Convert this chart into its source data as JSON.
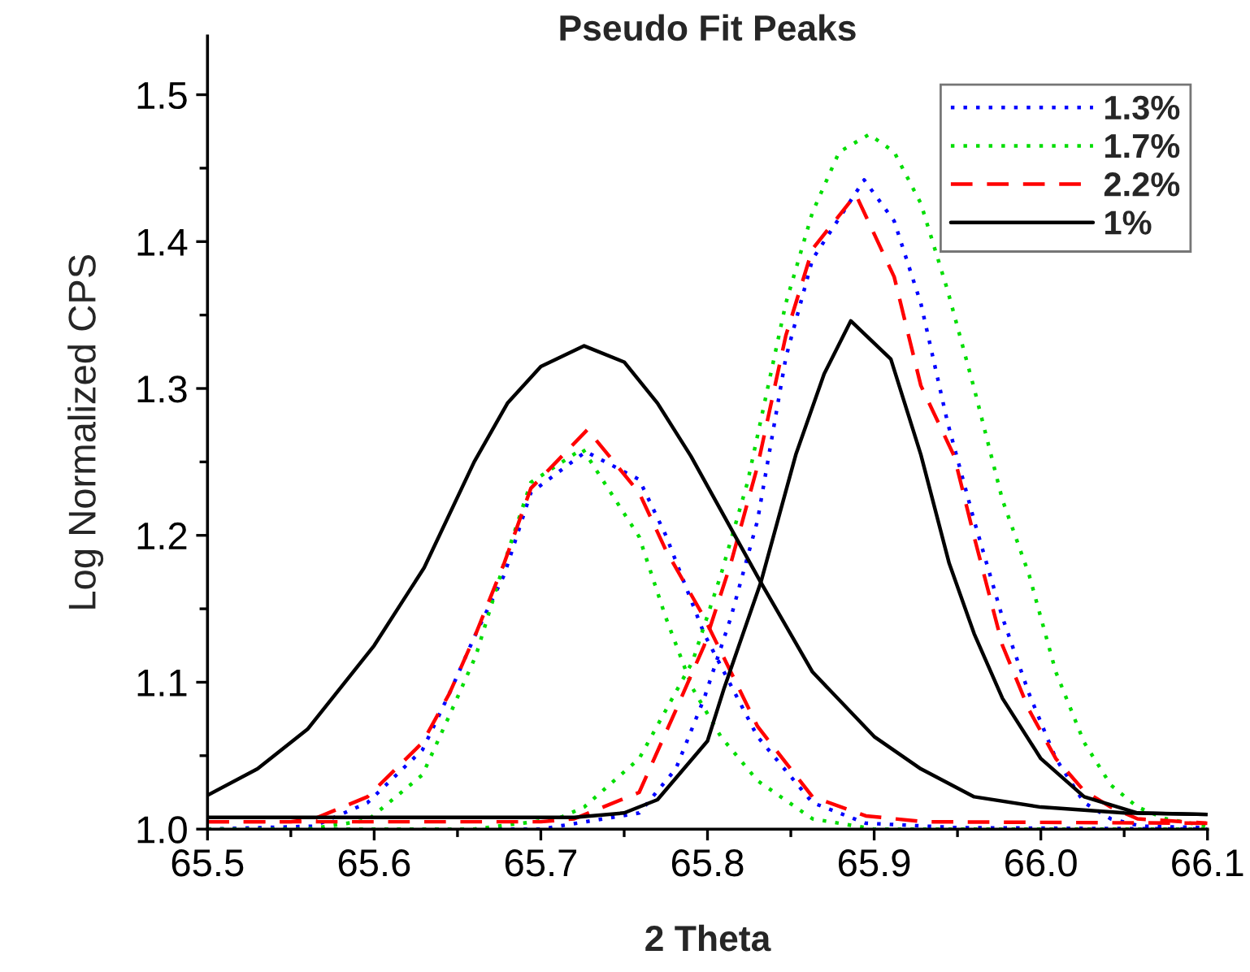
{
  "chart_data": {
    "type": "line",
    "title": "Pseudo Fit Peaks",
    "xlabel": "2 Theta",
    "ylabel": "Log Normalized CPS",
    "xlim": [
      65.5,
      66.1
    ],
    "ylim": [
      1.0,
      1.54
    ],
    "xticks": [
      65.5,
      {
        "value": 65.55,
        "label": null
      },
      65.6,
      {
        "value": 65.65,
        "label": null
      },
      65.7,
      {
        "value": 65.75,
        "label": null
      },
      65.8,
      {
        "value": 65.85,
        "label": null
      },
      65.9,
      {
        "value": 65.95,
        "label": null
      },
      {
        "value": 66.0,
        "label": "66.0"
      },
      {
        "value": 66.05,
        "label": null
      },
      66.1
    ],
    "yticks": [
      {
        "value": 1.0,
        "label": "1.0"
      },
      {
        "value": 1.05,
        "label": null
      },
      1.1,
      {
        "value": 1.15,
        "label": null
      },
      1.2,
      {
        "value": 1.25,
        "label": null
      },
      1.3,
      {
        "value": 1.35,
        "label": null
      },
      1.4,
      {
        "value": 1.45,
        "label": null
      },
      1.5
    ],
    "grid": false,
    "legend": "top right",
    "marker": "none",
    "series": [
      {
        "name": "1.3%",
        "color": "#0000ff",
        "line_style": "dotted",
        "x": [
          65.5,
          65.564,
          65.596,
          65.629,
          65.645,
          65.661,
          65.678,
          65.694,
          65.727,
          65.759,
          65.775,
          65.798,
          65.83,
          65.863,
          65.895,
          65.95,
          66.1
        ],
        "values": [
          1.0,
          1.002,
          1.018,
          1.054,
          1.092,
          1.133,
          1.173,
          1.229,
          1.257,
          1.238,
          1.2,
          1.133,
          1.063,
          1.018,
          1.004,
          1.001,
          1.0
        ]
      },
      {
        "color": "#0000ff",
        "line_style": "dotted",
        "x": [
          65.5,
          65.7,
          65.759,
          65.781,
          65.798,
          65.814,
          65.83,
          65.847,
          65.863,
          65.894,
          65.912,
          65.928,
          65.944,
          65.96,
          65.977,
          65.993,
          66.009,
          66.026,
          66.042,
          66.06,
          66.1
        ],
        "values": [
          1.0,
          1.0,
          1.011,
          1.041,
          1.089,
          1.144,
          1.21,
          1.321,
          1.388,
          1.442,
          1.414,
          1.358,
          1.277,
          1.21,
          1.144,
          1.092,
          1.048,
          1.018,
          1.007,
          1.002,
          1.001
        ]
      },
      {
        "name": "1.7%",
        "color": "#00dd00",
        "line_style": "dotted",
        "x": [
          65.5,
          65.56,
          65.596,
          65.629,
          65.645,
          65.661,
          65.678,
          65.694,
          65.725,
          65.759,
          65.775,
          65.791,
          65.808,
          65.83,
          65.863,
          65.9,
          66.1
        ],
        "values": [
          1.0,
          1.0,
          1.006,
          1.037,
          1.077,
          1.118,
          1.181,
          1.236,
          1.259,
          1.199,
          1.144,
          1.096,
          1.063,
          1.033,
          1.007,
          1.0,
          1.0
        ]
      },
      {
        "color": "#00dd00",
        "line_style": "dotted",
        "x": [
          65.5,
          65.66,
          65.71,
          65.726,
          65.759,
          65.791,
          65.808,
          65.824,
          65.847,
          65.863,
          65.879,
          65.897,
          65.912,
          65.928,
          65.944,
          65.96,
          65.977,
          65.993,
          66.009,
          66.026,
          66.042,
          66.058,
          66.075,
          66.1
        ],
        "values": [
          1.0,
          1.0,
          1.007,
          1.015,
          1.048,
          1.114,
          1.173,
          1.236,
          1.358,
          1.42,
          1.461,
          1.473,
          1.461,
          1.426,
          1.367,
          1.3,
          1.224,
          1.173,
          1.107,
          1.059,
          1.03,
          1.015,
          1.007,
          1.002
        ]
      },
      {
        "name": "2.2%",
        "color": "#ff0000",
        "line_style": "dashed",
        "x": [
          65.5,
          65.55,
          65.564,
          65.596,
          65.629,
          65.645,
          65.661,
          65.678,
          65.694,
          65.728,
          65.759,
          65.775,
          65.798,
          65.83,
          65.863,
          65.895,
          65.93,
          66.1
        ],
        "values": [
          1.005,
          1.005,
          1.007,
          1.022,
          1.059,
          1.092,
          1.133,
          1.181,
          1.232,
          1.272,
          1.229,
          1.19,
          1.144,
          1.07,
          1.022,
          1.009,
          1.005,
          1.004
        ]
      },
      {
        "color": "#ff0000",
        "line_style": "dashed",
        "x": [
          65.5,
          65.7,
          65.72,
          65.759,
          65.781,
          65.798,
          65.814,
          65.83,
          65.847,
          65.863,
          65.889,
          65.912,
          65.928,
          65.948,
          65.96,
          65.977,
          65.993,
          66.009,
          66.026,
          66.042,
          66.058,
          66.1
        ],
        "values": [
          1.005,
          1.005,
          1.007,
          1.025,
          1.081,
          1.125,
          1.181,
          1.247,
          1.336,
          1.395,
          1.432,
          1.376,
          1.302,
          1.254,
          1.199,
          1.125,
          1.081,
          1.048,
          1.026,
          1.015,
          1.007,
          1.004
        ]
      },
      {
        "name": "1%",
        "color": "#000000",
        "line_style": "solid",
        "x": [
          65.5,
          65.53,
          65.56,
          65.6,
          65.63,
          65.66,
          65.68,
          65.7,
          65.726,
          65.75,
          65.77,
          65.79,
          65.832,
          65.863,
          65.9,
          65.928,
          65.96,
          66.0,
          66.05,
          66.1
        ],
        "values": [
          1.023,
          1.041,
          1.068,
          1.125,
          1.178,
          1.25,
          1.29,
          1.315,
          1.329,
          1.318,
          1.29,
          1.254,
          1.168,
          1.107,
          1.063,
          1.041,
          1.022,
          1.015,
          1.011,
          1.01
        ]
      },
      {
        "color": "#000000",
        "line_style": "solid",
        "x": [
          65.5,
          65.72,
          65.75,
          65.77,
          65.8,
          65.81,
          65.832,
          65.853,
          65.87,
          65.886,
          65.91,
          65.928,
          65.945,
          65.96,
          65.977,
          66.0,
          66.026,
          66.058,
          66.1
        ],
        "values": [
          1.008,
          1.008,
          1.011,
          1.02,
          1.06,
          1.096,
          1.168,
          1.255,
          1.31,
          1.346,
          1.32,
          1.255,
          1.181,
          1.133,
          1.089,
          1.048,
          1.022,
          1.011,
          1.01
        ]
      }
    ]
  }
}
